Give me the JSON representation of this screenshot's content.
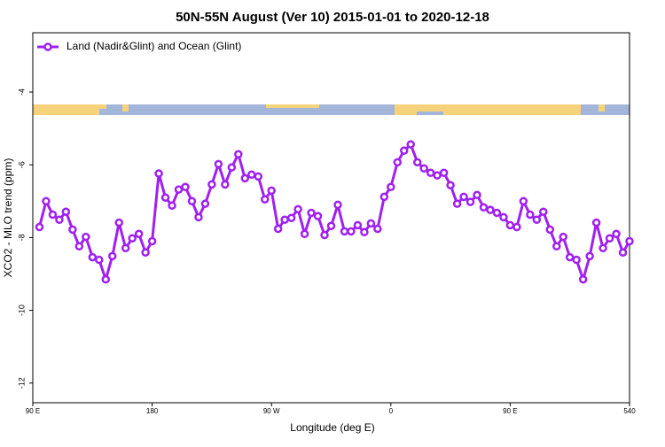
{
  "chart_data": {
    "type": "line",
    "title": "50N-55N August (Ver 10)   2015-01-01 to 2020-12-18",
    "x_label": "Longitude (deg E)",
    "y_label": "XCO2 - MLO trend (ppm)",
    "x": [
      95,
      100,
      105,
      110,
      115,
      120,
      125,
      130,
      135,
      140,
      145,
      150,
      155,
      160,
      165,
      170,
      175,
      180,
      185,
      190,
      195,
      200,
      205,
      210,
      215,
      220,
      225,
      230,
      235,
      240,
      245,
      250,
      255,
      260,
      265,
      270,
      275,
      280,
      285,
      290,
      295,
      300,
      305,
      310,
      315,
      320,
      325,
      330,
      335,
      340,
      345,
      350,
      355,
      360,
      365,
      370,
      375,
      380,
      385,
      390,
      395,
      400,
      405,
      410,
      415,
      420,
      425,
      430,
      435,
      440,
      445,
      450,
      455,
      460,
      465,
      470,
      475,
      480,
      485,
      490,
      495,
      500,
      505,
      510,
      515,
      520,
      525,
      530,
      535,
      540
    ],
    "series": [
      {
        "name": "Land (Nadir&Glint) and Ocean (Glint)",
        "color": "#a020f0",
        "values": [
          -7.71,
          -7.0,
          -7.37,
          -7.51,
          -7.29,
          -7.78,
          -8.24,
          -7.98,
          -8.54,
          -8.61,
          -9.15,
          -8.51,
          -7.59,
          -8.29,
          -8.02,
          -7.9,
          -8.41,
          -8.1,
          -6.24,
          -6.9,
          -7.12,
          -6.68,
          -6.61,
          -7.0,
          -7.44,
          -7.07,
          -6.54,
          -5.98,
          -6.54,
          -6.07,
          -5.71,
          -6.37,
          -6.27,
          -6.32,
          -6.95,
          -6.71,
          -7.76,
          -7.51,
          -7.46,
          -7.22,
          -7.9,
          -7.32,
          -7.41,
          -7.93,
          -7.68,
          -7.1,
          -7.83,
          -7.83,
          -7.66,
          -7.85,
          -7.61,
          -7.76,
          -6.88,
          -6.61,
          -5.93,
          -5.61,
          -5.44,
          -5.93,
          -6.1,
          -6.22,
          -6.29,
          -6.22,
          -6.56,
          -7.07,
          -6.88,
          -7.02,
          -6.83,
          -7.17,
          -7.24,
          -7.32,
          -7.44,
          -7.66,
          -7.71,
          -7.0,
          -7.37,
          -7.51,
          -7.29,
          -7.78,
          -8.24,
          -7.98,
          -8.54,
          -8.61,
          -9.15,
          -8.51,
          -7.59,
          -8.29,
          -8.02,
          -7.9,
          -8.41,
          -8.1
        ]
      }
    ],
    "xlim": [
      90,
      540
    ],
    "xticks": [
      {
        "value": 90,
        "label": "90 E"
      },
      180,
      {
        "value": 270,
        "label": "90 W"
      },
      {
        "value": 360,
        "label": "0"
      },
      {
        "value": 450,
        "label": "90 E"
      },
      540
    ],
    "ylim": [
      -12.54,
      -2.37
    ],
    "yticks": [
      -4,
      -6,
      -8,
      -10,
      -12
    ],
    "legend": "top-left"
  }
}
